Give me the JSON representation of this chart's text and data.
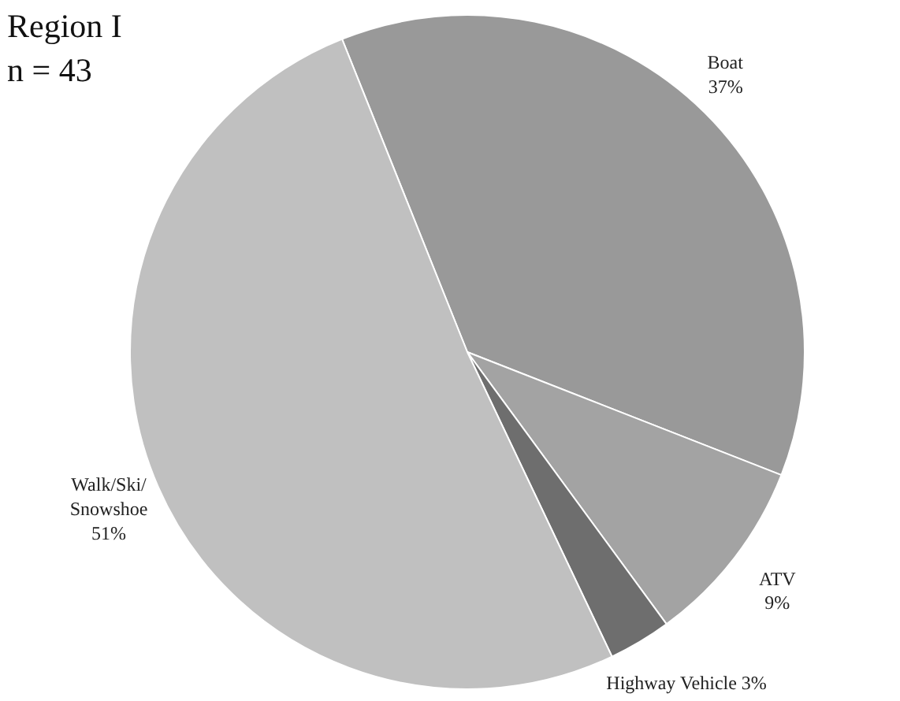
{
  "chart_data": {
    "type": "pie",
    "title": "Region I",
    "subtitle": "n = 43",
    "categories": [
      "Boat",
      "ATV",
      "Highway Vehicle",
      "Walk/Ski/Snowshoe"
    ],
    "values": [
      37,
      9,
      3,
      51
    ],
    "colors": [
      "#999999",
      "#a3a3a3",
      "#6e6e6e",
      "#c0c0c0"
    ],
    "value_labels": [
      "37%",
      "9%",
      "3%",
      "51%"
    ]
  }
}
